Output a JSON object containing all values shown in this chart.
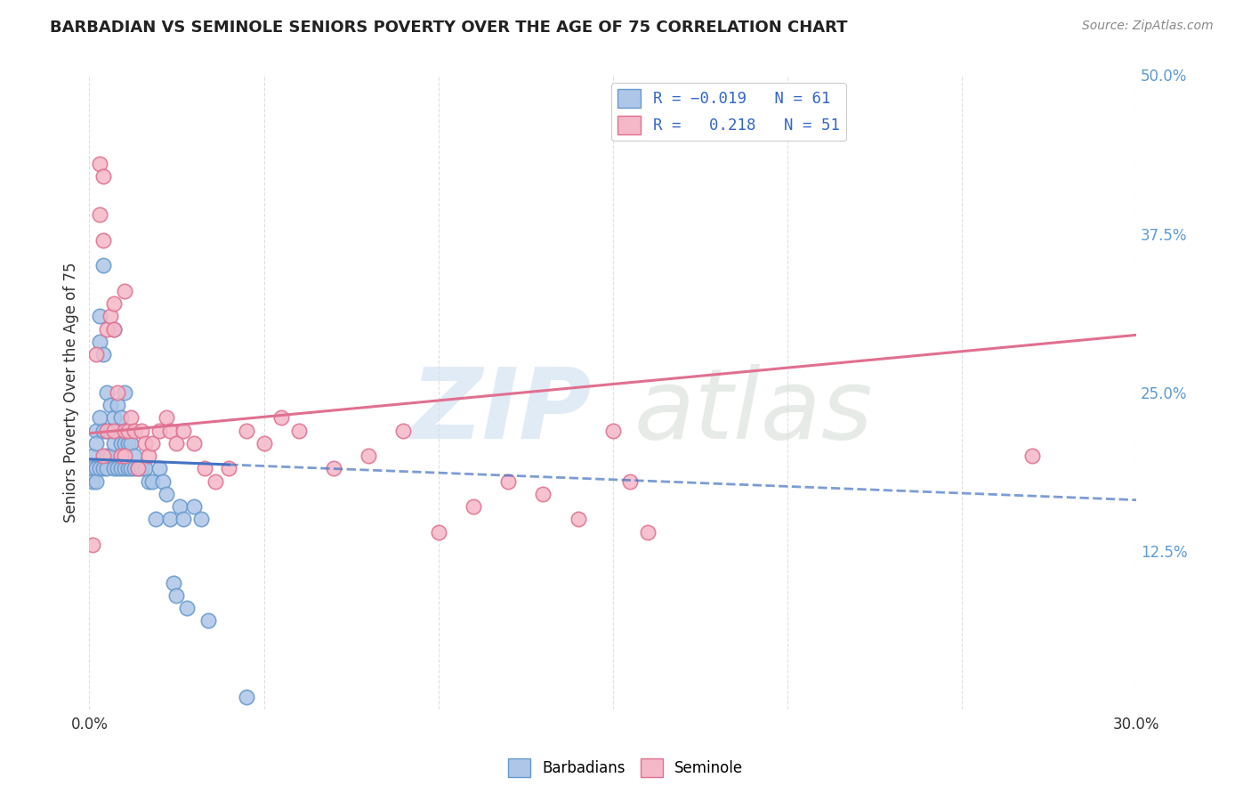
{
  "title": "BARBADIAN VS SEMINOLE SENIORS POVERTY OVER THE AGE OF 75 CORRELATION CHART",
  "source": "Source: ZipAtlas.com",
  "xlabel": "",
  "ylabel": "Seniors Poverty Over the Age of 75",
  "xlim": [
    0.0,
    0.3
  ],
  "ylim": [
    0.0,
    0.5
  ],
  "xticks": [
    0.0,
    0.05,
    0.1,
    0.15,
    0.2,
    0.25,
    0.3
  ],
  "xticklabels": [
    "0.0%",
    "",
    "",
    "",
    "",
    "",
    "30.0%"
  ],
  "yticks": [
    0.0,
    0.125,
    0.25,
    0.375,
    0.5
  ],
  "yticklabels": [
    "",
    "12.5%",
    "25.0%",
    "37.5%",
    "50.0%"
  ],
  "barbadian_color": "#aec6e8",
  "barbadian_edge": "#6699cc",
  "seminole_color": "#f5b8c8",
  "seminole_edge": "#e07090",
  "trendline_barbadian_color": "#4472c4",
  "trendline_seminole_color": "#e07090",
  "R_barbadian": -0.019,
  "N_barbadian": 61,
  "R_seminole": 0.218,
  "N_seminole": 51,
  "background_color": "#ffffff",
  "grid_color": "#e0e0e0",
  "barbadian_x": [
    0.001,
    0.001,
    0.001,
    0.002,
    0.002,
    0.002,
    0.002,
    0.003,
    0.003,
    0.003,
    0.003,
    0.004,
    0.004,
    0.004,
    0.004,
    0.005,
    0.005,
    0.005,
    0.005,
    0.006,
    0.006,
    0.006,
    0.007,
    0.007,
    0.007,
    0.007,
    0.008,
    0.008,
    0.008,
    0.009,
    0.009,
    0.009,
    0.01,
    0.01,
    0.01,
    0.01,
    0.011,
    0.011,
    0.012,
    0.012,
    0.013,
    0.013,
    0.014,
    0.015,
    0.016,
    0.017,
    0.018,
    0.019,
    0.02,
    0.021,
    0.022,
    0.023,
    0.024,
    0.025,
    0.026,
    0.027,
    0.028,
    0.03,
    0.032,
    0.034,
    0.045
  ],
  "barbadian_y": [
    0.2,
    0.19,
    0.18,
    0.22,
    0.21,
    0.19,
    0.18,
    0.31,
    0.29,
    0.23,
    0.19,
    0.35,
    0.28,
    0.22,
    0.19,
    0.25,
    0.22,
    0.2,
    0.19,
    0.24,
    0.22,
    0.2,
    0.3,
    0.23,
    0.21,
    0.19,
    0.24,
    0.22,
    0.19,
    0.23,
    0.21,
    0.19,
    0.25,
    0.22,
    0.21,
    0.19,
    0.21,
    0.19,
    0.21,
    0.19,
    0.2,
    0.19,
    0.19,
    0.19,
    0.19,
    0.18,
    0.18,
    0.15,
    0.19,
    0.18,
    0.17,
    0.15,
    0.1,
    0.09,
    0.16,
    0.15,
    0.08,
    0.16,
    0.15,
    0.07,
    0.01
  ],
  "seminole_x": [
    0.001,
    0.002,
    0.003,
    0.003,
    0.004,
    0.004,
    0.005,
    0.005,
    0.006,
    0.007,
    0.007,
    0.008,
    0.009,
    0.01,
    0.01,
    0.011,
    0.012,
    0.013,
    0.014,
    0.015,
    0.016,
    0.017,
    0.018,
    0.02,
    0.022,
    0.023,
    0.025,
    0.027,
    0.03,
    0.033,
    0.036,
    0.04,
    0.045,
    0.05,
    0.055,
    0.06,
    0.07,
    0.08,
    0.09,
    0.1,
    0.11,
    0.12,
    0.13,
    0.14,
    0.15,
    0.16,
    0.004,
    0.007,
    0.01,
    0.27,
    0.155
  ],
  "seminole_y": [
    0.13,
    0.28,
    0.43,
    0.39,
    0.42,
    0.37,
    0.3,
    0.22,
    0.31,
    0.3,
    0.22,
    0.25,
    0.2,
    0.22,
    0.2,
    0.22,
    0.23,
    0.22,
    0.19,
    0.22,
    0.21,
    0.2,
    0.21,
    0.22,
    0.23,
    0.22,
    0.21,
    0.22,
    0.21,
    0.19,
    0.18,
    0.19,
    0.22,
    0.21,
    0.23,
    0.22,
    0.19,
    0.2,
    0.22,
    0.14,
    0.16,
    0.18,
    0.17,
    0.15,
    0.22,
    0.14,
    0.2,
    0.32,
    0.33,
    0.2,
    0.18
  ]
}
